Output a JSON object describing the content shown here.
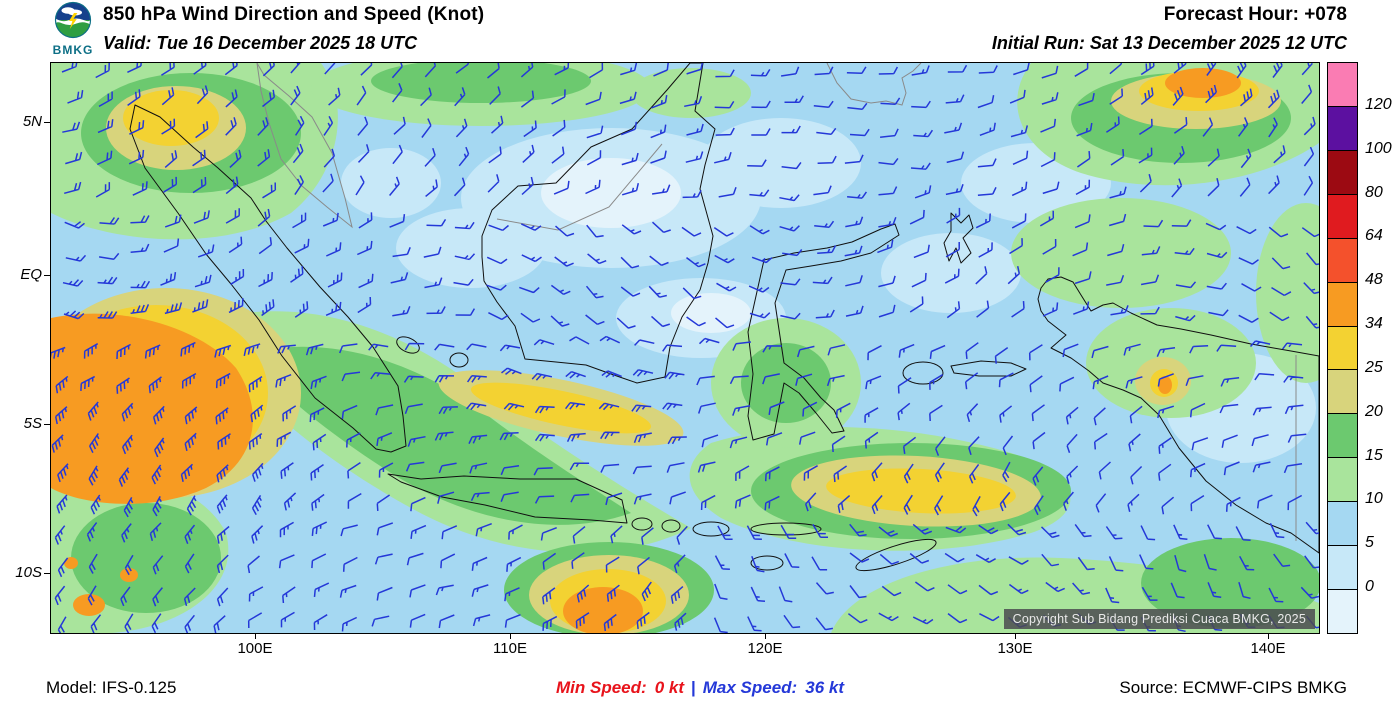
{
  "header": {
    "logo_text": "BMKG",
    "title": "850 hPa Wind Direction and Speed (Knot)",
    "forecast_hour": "Forecast Hour: +078",
    "valid_time": "Valid: Tue 16 December 2025 18 UTC",
    "initial_run": "Initial Run: Sat 13 December 2025 12 UTC"
  },
  "map": {
    "copyright": "Copyright Sub Bidang Prediksi Cuaca BMKG, 2025",
    "wind_barb_color": "#2438d8",
    "y_ticks": [
      "5N",
      "EQ",
      "5S",
      "10S"
    ],
    "x_ticks": [
      "100E",
      "110E",
      "120E",
      "130E",
      "140E"
    ]
  },
  "colorbar": {
    "unit": "Knot",
    "labels": [
      "120",
      "100",
      "80",
      "64",
      "48",
      "34",
      "25",
      "20",
      "15",
      "10",
      "5",
      "0"
    ],
    "colors_top_to_bottom": [
      "#fa7cb3",
      "#5c10a0",
      "#9c0a12",
      "#e01b1f",
      "#f4512c",
      "#f79b22",
      "#f3d232",
      "#d8d47c",
      "#6cc96f",
      "#a9e49c",
      "#a5d8f2",
      "#c7e8f8",
      "#e4f3fb"
    ]
  },
  "footer": {
    "model": "Model: IFS-0.125",
    "min_speed_label": "Min Speed:",
    "min_speed_value": "0 kt",
    "separator": "|",
    "max_speed_label": "Max Speed:",
    "max_speed_value": "36 kt",
    "source": "Source: ECMWF-CIPS BMKG"
  },
  "chart_data": {
    "type": "heatmap",
    "title": "850 hPa Wind Direction and Speed (Knot)",
    "x_tick_labels": [
      "100E",
      "110E",
      "120E",
      "130E",
      "140E"
    ],
    "y_tick_labels": [
      "5N",
      "EQ",
      "5S",
      "10S"
    ],
    "legend_boundaries_kt": [
      0,
      5,
      10,
      15,
      20,
      25,
      34,
      48,
      64,
      80,
      100,
      120
    ],
    "min_speed_kt": 0,
    "max_speed_kt": 36,
    "forecast_hour": 78
  }
}
